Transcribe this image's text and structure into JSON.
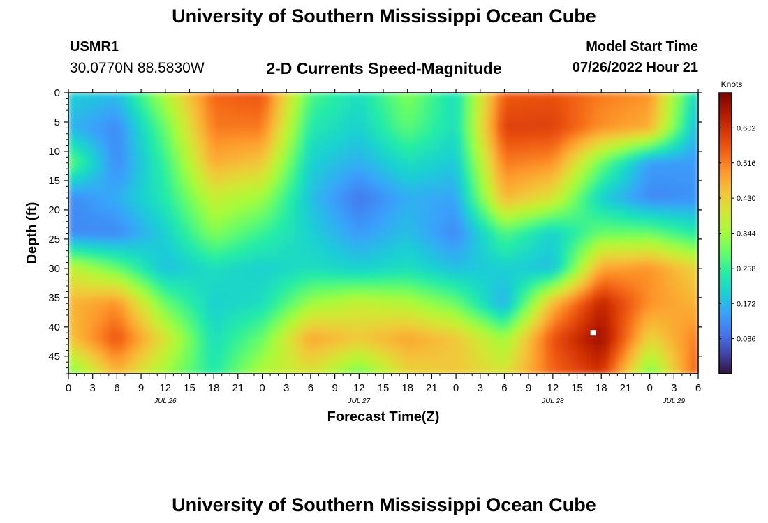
{
  "page": {
    "title": "University of Southern Mississippi Ocean Cube",
    "footer_title": "University of Southern Mississippi Ocean Cube",
    "station": "USMR1",
    "coordinates": "30.0770N  88.5830W",
    "subtitle": "2-D Currents Speed-Magnitude",
    "model_start_label": "Model Start Time",
    "model_start_value": "07/26/2022 Hour 21"
  },
  "chart_data": {
    "type": "heatmap",
    "title": "2-D Currents Speed-Magnitude",
    "xlabel": "Forecast Time(Z)",
    "ylabel": "Depth (ft)",
    "x_hours_range": [
      0,
      78
    ],
    "x_tick_hours": [
      0,
      3,
      6,
      9,
      12,
      15,
      18,
      21,
      24,
      27,
      30,
      33,
      36,
      39,
      42,
      45,
      48,
      51,
      54,
      57,
      60,
      63,
      66,
      69,
      72,
      75,
      78
    ],
    "x_tick_labels": [
      "0",
      "3",
      "6",
      "9",
      "12",
      "15",
      "18",
      "21",
      "0",
      "3",
      "6",
      "9",
      "12",
      "15",
      "18",
      "21",
      "0",
      "3",
      "6",
      "9",
      "12",
      "15",
      "18",
      "21",
      "0",
      "3",
      "6"
    ],
    "date_labels": [
      {
        "label": "JUL 26",
        "hour": 12
      },
      {
        "label": "JUL 27",
        "hour": 36
      },
      {
        "label": "JUL 28",
        "hour": 60
      },
      {
        "label": "JUL 29",
        "hour": 75
      }
    ],
    "y_range": [
      0,
      48
    ],
    "y_ticks": [
      0,
      5,
      10,
      15,
      20,
      25,
      30,
      35,
      40,
      45
    ],
    "y_reversed": true,
    "colorbar": {
      "title": "Knots",
      "range": [
        0,
        0.688
      ],
      "ticks": [
        0.086,
        0.172,
        0.258,
        0.344,
        0.43,
        0.516,
        0.602
      ],
      "tick_labels": [
        "0.086",
        "0.172",
        "0.258",
        "0.344",
        "0.430",
        "0.516",
        "0.602"
      ],
      "colors": [
        "#30123b",
        "#4145ab",
        "#4675ed",
        "#39a2fc",
        "#1bcfd4",
        "#24eca6",
        "#61fc6c",
        "#a4fc3b",
        "#d1e834",
        "#f3c63a",
        "#fe9b2d",
        "#f36315",
        "#d93806",
        "#b11901",
        "#7a0402"
      ]
    },
    "speed_grid": {
      "depth_rows_ft": [
        0,
        6,
        12,
        18,
        24,
        30,
        36,
        42,
        48
      ],
      "hour_cols": [
        0,
        6,
        12,
        18,
        24,
        30,
        36,
        42,
        48,
        54,
        60,
        66,
        72,
        78
      ],
      "values_knots": [
        [
          0.2,
          0.18,
          0.36,
          0.54,
          0.56,
          0.28,
          0.22,
          0.32,
          0.22,
          0.55,
          0.56,
          0.52,
          0.5,
          0.2
        ],
        [
          0.17,
          0.12,
          0.3,
          0.52,
          0.52,
          0.24,
          0.2,
          0.29,
          0.22,
          0.58,
          0.58,
          0.5,
          0.47,
          0.16
        ],
        [
          0.3,
          0.12,
          0.26,
          0.47,
          0.44,
          0.2,
          0.16,
          0.22,
          0.19,
          0.52,
          0.5,
          0.3,
          0.14,
          0.14
        ],
        [
          0.12,
          0.16,
          0.24,
          0.38,
          0.34,
          0.18,
          0.1,
          0.16,
          0.15,
          0.46,
          0.4,
          0.2,
          0.12,
          0.13
        ],
        [
          0.12,
          0.12,
          0.2,
          0.32,
          0.26,
          0.2,
          0.14,
          0.18,
          0.12,
          0.28,
          0.2,
          0.3,
          0.3,
          0.24
        ],
        [
          0.38,
          0.3,
          0.18,
          0.22,
          0.2,
          0.22,
          0.2,
          0.22,
          0.18,
          0.2,
          0.18,
          0.48,
          0.5,
          0.42
        ],
        [
          0.46,
          0.5,
          0.3,
          0.2,
          0.22,
          0.34,
          0.38,
          0.36,
          0.3,
          0.16,
          0.46,
          0.62,
          0.5,
          0.46
        ],
        [
          0.44,
          0.56,
          0.4,
          0.22,
          0.3,
          0.48,
          0.44,
          0.48,
          0.44,
          0.34,
          0.56,
          0.66,
          0.42,
          0.52
        ],
        [
          0.3,
          0.46,
          0.34,
          0.24,
          0.36,
          0.4,
          0.3,
          0.42,
          0.44,
          0.4,
          0.54,
          0.6,
          0.3,
          0.56
        ]
      ]
    },
    "marker": {
      "hour": 65,
      "depth_ft": 41
    }
  }
}
